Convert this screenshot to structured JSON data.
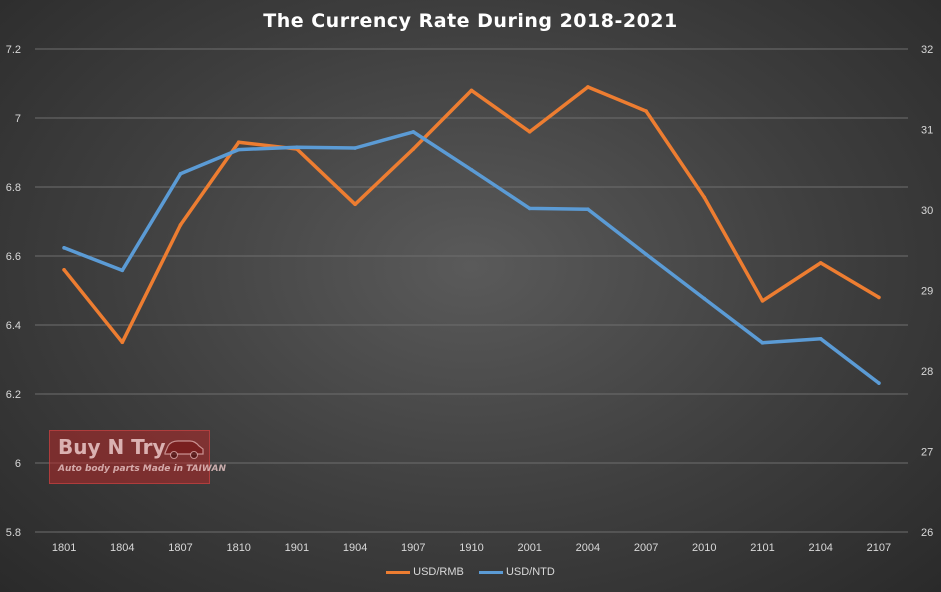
{
  "chart_data": {
    "type": "line",
    "title": "The Currency Rate During 2018-2021",
    "categories": [
      "1801",
      "1804",
      "1807",
      "1810",
      "1901",
      "1904",
      "1907",
      "1910",
      "2001",
      "2004",
      "2007",
      "2010",
      "2101",
      "2104",
      "2107"
    ],
    "series": [
      {
        "name": "USD/RMB",
        "axis": "left",
        "color": "#ed7d31",
        "values": [
          6.56,
          6.35,
          6.69,
          6.93,
          6.91,
          6.75,
          6.91,
          7.08,
          6.96,
          7.09,
          7.02,
          6.77,
          6.47,
          6.58,
          6.48
        ]
      },
      {
        "name": "USD/NTD",
        "axis": "right",
        "color": "#5b9bd5",
        "values": [
          29.53,
          29.25,
          30.45,
          30.75,
          30.78,
          30.77,
          30.97,
          30.5,
          30.02,
          30.01,
          29.45,
          28.9,
          28.35,
          28.4,
          27.85
        ]
      }
    ],
    "y_left": {
      "min": 5.8,
      "max": 7.2,
      "ticks": [
        "5.8",
        "6",
        "6.2",
        "6.4",
        "6.6",
        "6.8",
        "7",
        "7.2"
      ]
    },
    "y_right": {
      "min": 26,
      "max": 32,
      "ticks": [
        "26",
        "27",
        "28",
        "29",
        "30",
        "31",
        "32"
      ]
    },
    "grid": true,
    "legend_position": "bottom"
  },
  "watermark": {
    "name": "Buy N Try",
    "tagline": "Auto body parts Made in TAIWAN",
    "icon": "car-icon"
  }
}
